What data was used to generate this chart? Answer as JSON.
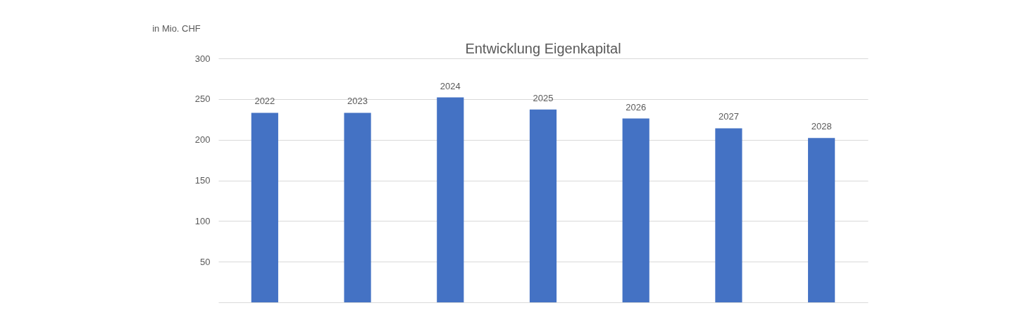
{
  "chart_data": {
    "type": "bar",
    "title": "Entwicklung Eigenkapital",
    "ylabel": "in Mio. CHF",
    "categories": [
      "2022",
      "2023",
      "2024",
      "2025",
      "2026",
      "2027",
      "2028"
    ],
    "values": [
      233,
      233,
      252,
      237,
      226,
      214,
      202
    ],
    "color": "#4472c4",
    "ylim": [
      0,
      300
    ],
    "yticks": [
      {
        "value": 0,
        "label": null
      },
      50,
      100,
      150,
      200,
      250,
      300
    ],
    "grid": true
  }
}
